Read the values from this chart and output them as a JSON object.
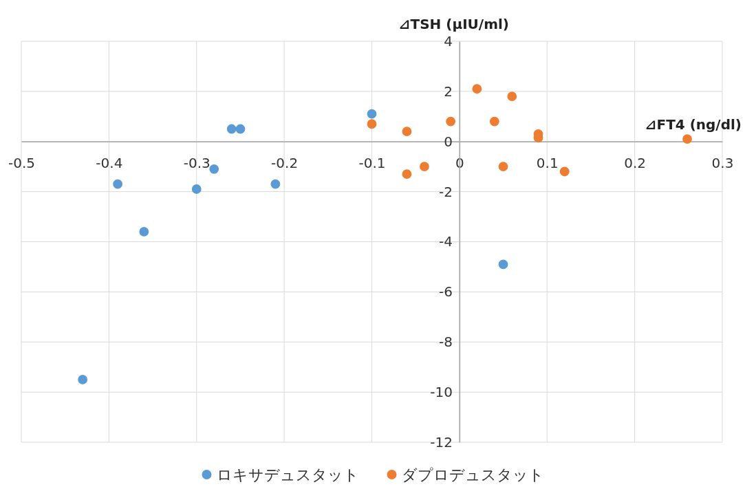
{
  "chart_data": {
    "type": "scatter",
    "xlabel": "⊿FT4 (ng/dl)",
    "ylabel": "⊿TSH (µIU/ml)",
    "xlim": [
      -0.5,
      0.3
    ],
    "xticks": [
      -0.5,
      -0.4,
      -0.3,
      -0.2,
      -0.1,
      0,
      0.1,
      0.2,
      0.3
    ],
    "ylim": [
      -12,
      4
    ],
    "yticks": [
      -12,
      -10,
      -8,
      -6,
      -4,
      -2,
      0,
      2,
      4
    ],
    "grid": true,
    "legend": "bottom",
    "marker": "circle",
    "series": [
      {
        "name": "ロキサデュスタット",
        "color": "#5b9bd5",
        "x": [
          -0.43,
          -0.39,
          -0.36,
          -0.3,
          -0.28,
          -0.26,
          -0.25,
          -0.21,
          -0.1,
          0.05
        ],
        "values": [
          -9.5,
          -1.7,
          -3.6,
          -1.9,
          -1.1,
          0.5,
          0.5,
          -1.7,
          1.1,
          -4.9
        ]
      },
      {
        "name": "ダプロデュスタット",
        "color": "#ed7d31",
        "x": [
          -0.1,
          -0.06,
          -0.06,
          -0.04,
          -0.01,
          0.02,
          0.04,
          0.06,
          0.05,
          0.09,
          0.09,
          0.12,
          0.26
        ],
        "values": [
          0.7,
          0.4,
          -1.3,
          -1.0,
          0.8,
          2.1,
          0.8,
          1.8,
          -1.0,
          0.3,
          0.15,
          -1.2,
          0.1
        ]
      }
    ]
  }
}
